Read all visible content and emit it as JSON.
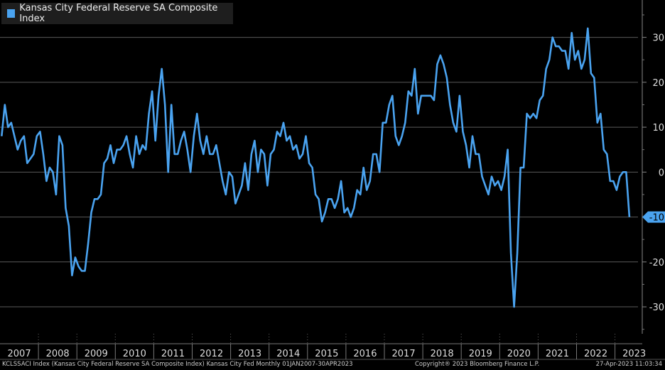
{
  "chart_data": {
    "type": "line",
    "title": "",
    "xlabel": "",
    "ylabel": "",
    "ylim": [
      -36,
      38
    ],
    "y_ticks": [
      30,
      20,
      10,
      0,
      -10,
      -20,
      -30
    ],
    "y_tick_labels": [
      "30",
      "20",
      "10",
      "0",
      "-10",
      "-20",
      "-30"
    ],
    "y_axis_side": "right",
    "x_tick_labels": [
      "2007",
      "2008",
      "2009",
      "2010",
      "2011",
      "2012",
      "2013",
      "2014",
      "2015",
      "2016",
      "2017",
      "2018",
      "2019",
      "2020",
      "2021",
      "2022",
      "2023"
    ],
    "grid": true,
    "legend_position": "top-left",
    "last_value_label": "-10",
    "series": [
      {
        "name": "Kansas City Federal Reserve SA Composite Index",
        "color": "#4aa3f0",
        "start": "2007-01",
        "end": "2023-04",
        "values": [
          8,
          15,
          10,
          11,
          8,
          5,
          7,
          8,
          2,
          3,
          4,
          8,
          9,
          4,
          -2,
          1,
          0,
          -5,
          8,
          6,
          -8,
          -12,
          -23,
          -19,
          -21,
          -22,
          -22,
          -16,
          -9,
          -6,
          -6,
          -5,
          2,
          3,
          6,
          2,
          5,
          5,
          6,
          8,
          4,
          1,
          8,
          4,
          6,
          5,
          13,
          18,
          7,
          17,
          23,
          15,
          0,
          15,
          4,
          4,
          7,
          9,
          5,
          0,
          8,
          13,
          7,
          4,
          8,
          4,
          4,
          6,
          2,
          -2,
          -5,
          0,
          -1,
          -7,
          -5,
          -3,
          2,
          -4,
          4,
          7,
          0,
          5,
          4,
          -3,
          4,
          5,
          9,
          8,
          11,
          7,
          8,
          5,
          6,
          3,
          4,
          8,
          2,
          1,
          -5,
          -6,
          -11,
          -9,
          -6,
          -6,
          -8,
          -6,
          -2,
          -9,
          -8,
          -10,
          -8,
          -4,
          -5,
          1,
          -4,
          -2,
          4,
          4,
          0,
          11,
          11,
          15,
          17,
          8,
          6,
          8,
          11,
          18,
          17,
          23,
          13,
          17,
          17,
          17,
          17,
          16,
          24,
          26,
          24,
          21,
          15,
          11,
          9,
          17,
          9,
          6,
          1,
          8,
          4,
          4,
          -1,
          -3,
          -5,
          -1,
          -3,
          -2,
          -4,
          -1,
          5,
          -18,
          -30,
          -18,
          1,
          1,
          13,
          12,
          13,
          12,
          16,
          17,
          23,
          25,
          30,
          28,
          28,
          27,
          27,
          23,
          31,
          25,
          27,
          23,
          25,
          32,
          22,
          21,
          11,
          13,
          5,
          4,
          -2,
          -2,
          -4,
          -1,
          0,
          0,
          -10
        ]
      }
    ]
  },
  "footer": {
    "left": "KCLSSACI Index (Kansas City Federal Reserve SA Composite Index) Kansas City Fed  Monthly 01JAN2007-30APR2023",
    "center": "Copyright® 2023 Bloomberg Finance L.P.",
    "right": "27-Apr-2023 11:03:34"
  }
}
